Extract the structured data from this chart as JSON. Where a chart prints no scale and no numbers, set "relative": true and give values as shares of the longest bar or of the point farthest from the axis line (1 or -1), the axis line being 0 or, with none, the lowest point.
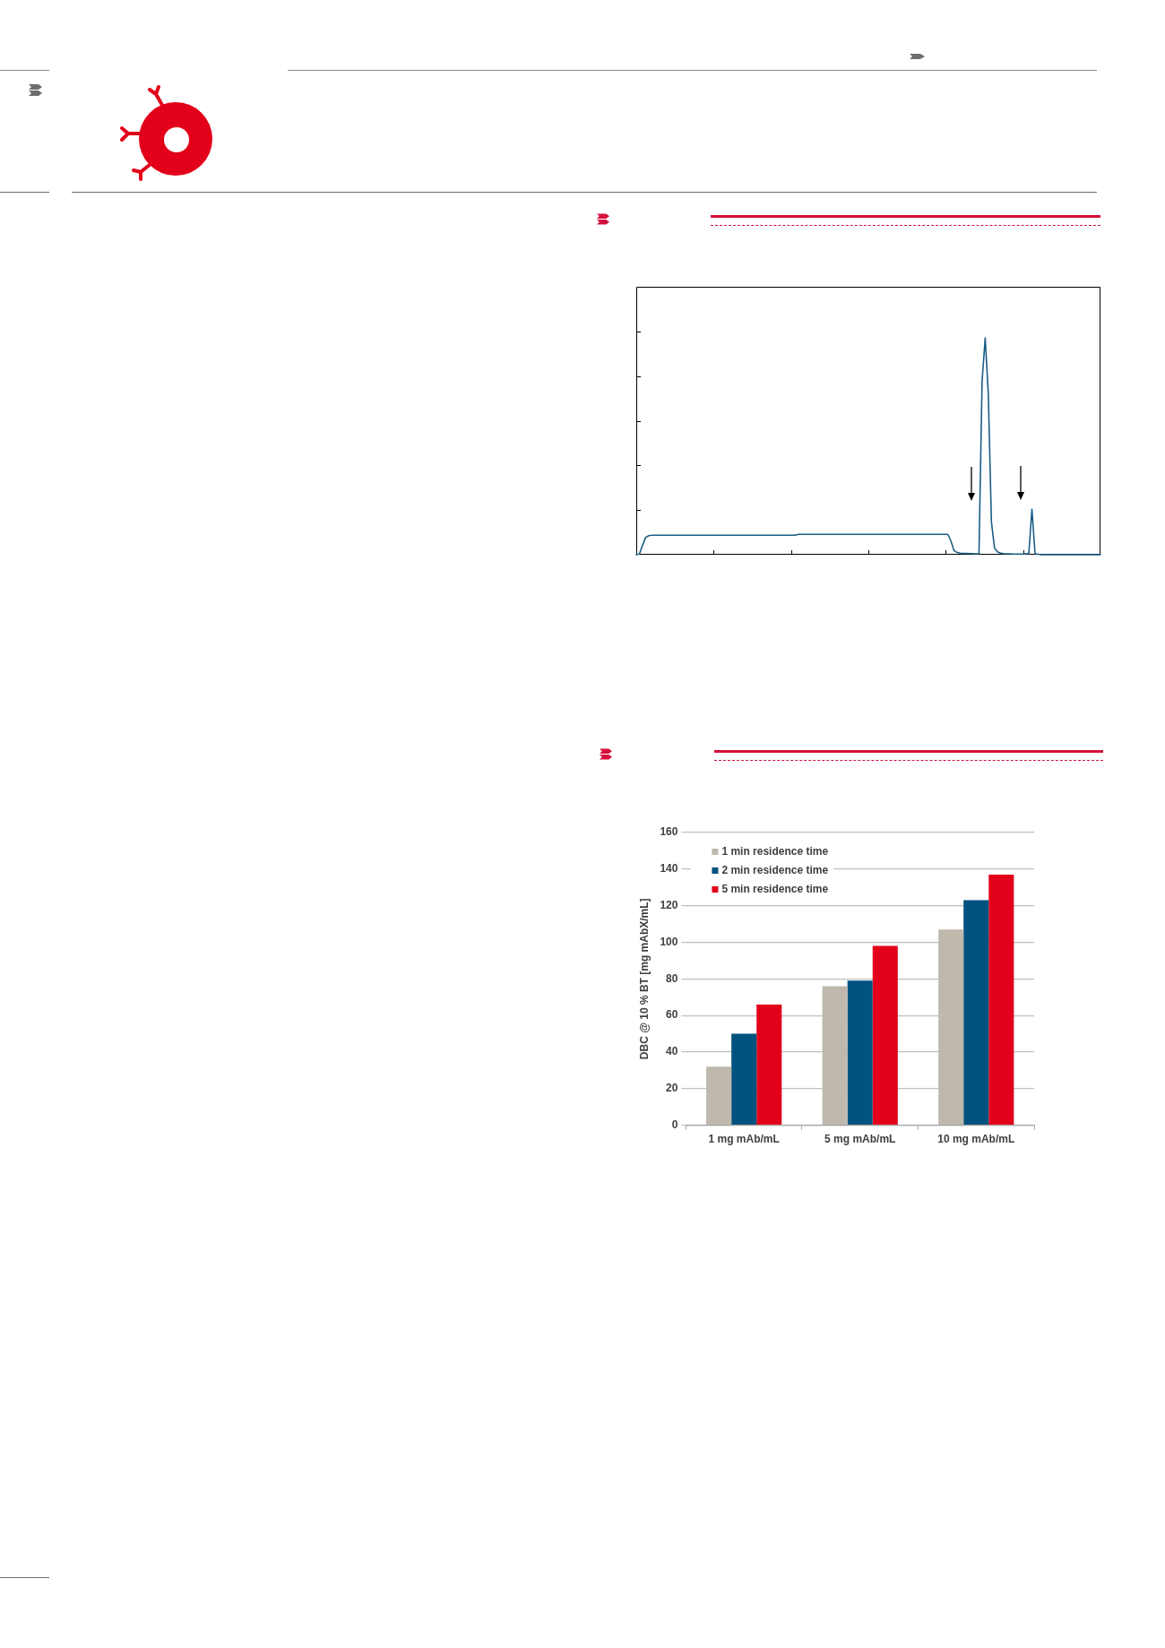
{
  "chart_data": [
    {
      "type": "line",
      "relative": true,
      "categories": [
        null,
        null,
        null,
        null,
        null,
        null,
        null,
        null,
        null,
        null,
        null,
        null,
        null,
        null,
        null,
        null,
        null,
        null,
        null,
        null,
        null,
        null,
        null,
        null,
        null,
        null,
        null,
        null,
        null,
        null,
        null,
        null,
        null,
        null,
        null,
        null,
        null,
        null,
        null,
        null,
        null,
        null,
        null,
        null,
        null,
        null,
        null,
        null,
        null,
        null,
        null,
        null,
        null,
        null,
        null,
        null,
        null,
        null,
        null,
        null,
        null,
        null,
        null,
        null,
        null,
        null,
        null,
        null,
        null,
        null,
        null,
        null,
        null,
        null,
        null,
        null,
        null,
        null,
        null,
        null,
        null,
        null,
        null,
        null,
        null,
        null,
        null,
        null,
        null,
        null,
        null,
        null,
        null,
        null,
        null,
        null,
        null,
        null,
        null,
        null,
        null,
        null,
        null,
        null,
        null,
        null,
        null,
        null,
        null,
        null,
        null,
        null,
        null,
        null,
        null,
        null,
        null,
        null,
        null,
        null,
        null,
        null,
        null,
        null,
        null,
        null,
        null,
        null,
        null,
        null,
        null,
        null,
        null,
        null,
        null,
        null,
        null,
        null,
        null,
        null,
        null,
        null,
        null,
        null,
        null,
        null,
        null,
        null,
        null,
        null
      ],
      "series": [
        {
          "color": "#1b5e85",
          "values": [
            0,
            0.003,
            0.043,
            0.079,
            0.088,
            0.09,
            0.09,
            0.09,
            0.09,
            0.09,
            0.09,
            0.09,
            0.09,
            0.09,
            0.09,
            0.09,
            0.09,
            0.09,
            0.09,
            0.09,
            0.09,
            0.09,
            0.09,
            0.09,
            0.09,
            0.09,
            0.09,
            0.09,
            0.09,
            0.09,
            0.09,
            0.09,
            0.09,
            0.09,
            0.09,
            0.09,
            0.09,
            0.09,
            0.09,
            0.09,
            0.09,
            0.09,
            0.09,
            0.09,
            0.09,
            0.09,
            0.09,
            0.09,
            0.09,
            0.09,
            0.09,
            0.09,
            0.094,
            0.094,
            0.094,
            0.094,
            0.094,
            0.094,
            0.094,
            0.094,
            0.094,
            0.094,
            0.094,
            0.094,
            0.094,
            0.094,
            0.094,
            0.094,
            0.094,
            0.094,
            0.094,
            0.094,
            0.094,
            0.094,
            0.094,
            0.094,
            0.094,
            0.094,
            0.094,
            0.094,
            0.094,
            0.094,
            0.094,
            0.094,
            0.094,
            0.094,
            0.094,
            0.094,
            0.094,
            0.094,
            0.094,
            0.094,
            0.094,
            0.094,
            0.094,
            0.094,
            0.094,
            0.094,
            0.094,
            0.094,
            0.094,
            0.063,
            0.019,
            0.01,
            0.007,
            0.006,
            0.006,
            0.005,
            0.005,
            0.004,
            0.004,
            0.8,
            1,
            0.74,
            0.15,
            0.03,
            0.012,
            0.007,
            0.005,
            0.004,
            0.004,
            0.003,
            0.003,
            0.003,
            0.003,
            0.004,
            0.005,
            0.21,
            0.004,
            0.002,
            0,
            0,
            0,
            0,
            0,
            0,
            0,
            0,
            0,
            0,
            0,
            0,
            0,
            0,
            0,
            0,
            0,
            0,
            0,
            0
          ]
        }
      ]
    },
    {
      "type": "bar",
      "categories": [
        "1 mg mAb/mL",
        "5 mg mAb/mL",
        "10 mg mAb/mL"
      ],
      "series": [
        {
          "name": "1 min residence time",
          "color": "#bfb8ac",
          "values": [
            32,
            76,
            107
          ]
        },
        {
          "name": "2 min residence time",
          "color": "#00527f",
          "values": [
            50,
            79,
            123
          ]
        },
        {
          "name": "5 min residence time",
          "color": "#e2001a",
          "values": [
            66,
            98,
            137
          ]
        }
      ],
      "ylabel": "DBC @ 10 % BT [mg mAbX/mL]",
      "ylim": [
        0,
        160
      ],
      "yticks": [
        0,
        20,
        40,
        60,
        80,
        100,
        120,
        140,
        160
      ],
      "grid": "y",
      "legend": "top left"
    }
  ]
}
